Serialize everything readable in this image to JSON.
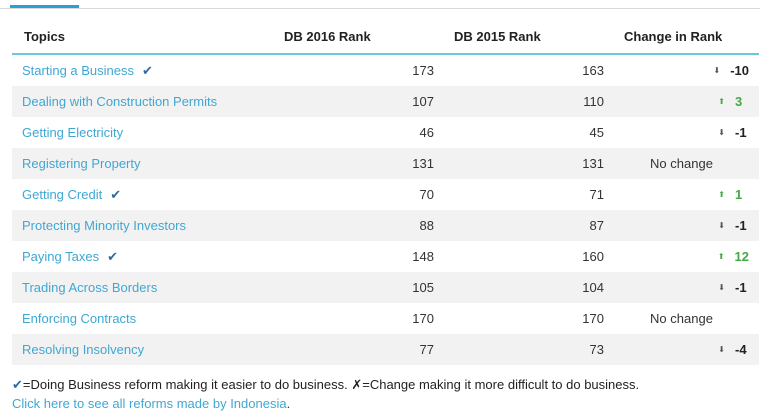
{
  "headers": {
    "topic": "Topics",
    "rank2016": "DB 2016 Rank",
    "rank2015": "DB 2015 Rank",
    "change": "Change in Rank"
  },
  "rows": [
    {
      "topic": "Starting a Business",
      "reform": true,
      "r2016": "173",
      "r2015": "163",
      "change": "-10",
      "direction": "down"
    },
    {
      "topic": "Dealing with Construction Permits",
      "reform": false,
      "r2016": "107",
      "r2015": "110",
      "change": "3",
      "direction": "up"
    },
    {
      "topic": "Getting Electricity",
      "reform": false,
      "r2016": "46",
      "r2015": "45",
      "change": "-1",
      "direction": "down"
    },
    {
      "topic": "Registering Property",
      "reform": false,
      "r2016": "131",
      "r2015": "131",
      "change": "No change",
      "direction": "none"
    },
    {
      "topic": "Getting Credit",
      "reform": true,
      "r2016": "70",
      "r2015": "71",
      "change": "1",
      "direction": "up"
    },
    {
      "topic": "Protecting Minority Investors",
      "reform": false,
      "r2016": "88",
      "r2015": "87",
      "change": "-1",
      "direction": "down"
    },
    {
      "topic": "Paying Taxes",
      "reform": true,
      "r2016": "148",
      "r2015": "160",
      "change": "12",
      "direction": "up"
    },
    {
      "topic": "Trading Across Borders",
      "reform": false,
      "r2016": "105",
      "r2015": "104",
      "change": "-1",
      "direction": "down"
    },
    {
      "topic": "Enforcing Contracts",
      "reform": false,
      "r2016": "170",
      "r2015": "170",
      "change": "No change",
      "direction": "none"
    },
    {
      "topic": "Resolving Insolvency",
      "reform": false,
      "r2016": "77",
      "r2015": "73",
      "change": "-4",
      "direction": "down"
    }
  ],
  "legend": {
    "check_symbol": "✔",
    "check_text": "=Doing Business reform making it easier to do business.",
    "cross_symbol": "✗",
    "cross_text": "=Change making it more difficult to do business."
  },
  "footer": {
    "link_text": "Click here to see all reforms made by Indonesia",
    "trailing": "."
  },
  "icons": {
    "reform_check": "✔",
    "arrow_up": "⬆",
    "arrow_down": "⬇"
  },
  "colors": {
    "link": "#3fa7d3",
    "header_rule": "#6cc6de",
    "up": "#46a846",
    "check": "#2f6aa3",
    "tab_active": "#2a9fd6"
  }
}
